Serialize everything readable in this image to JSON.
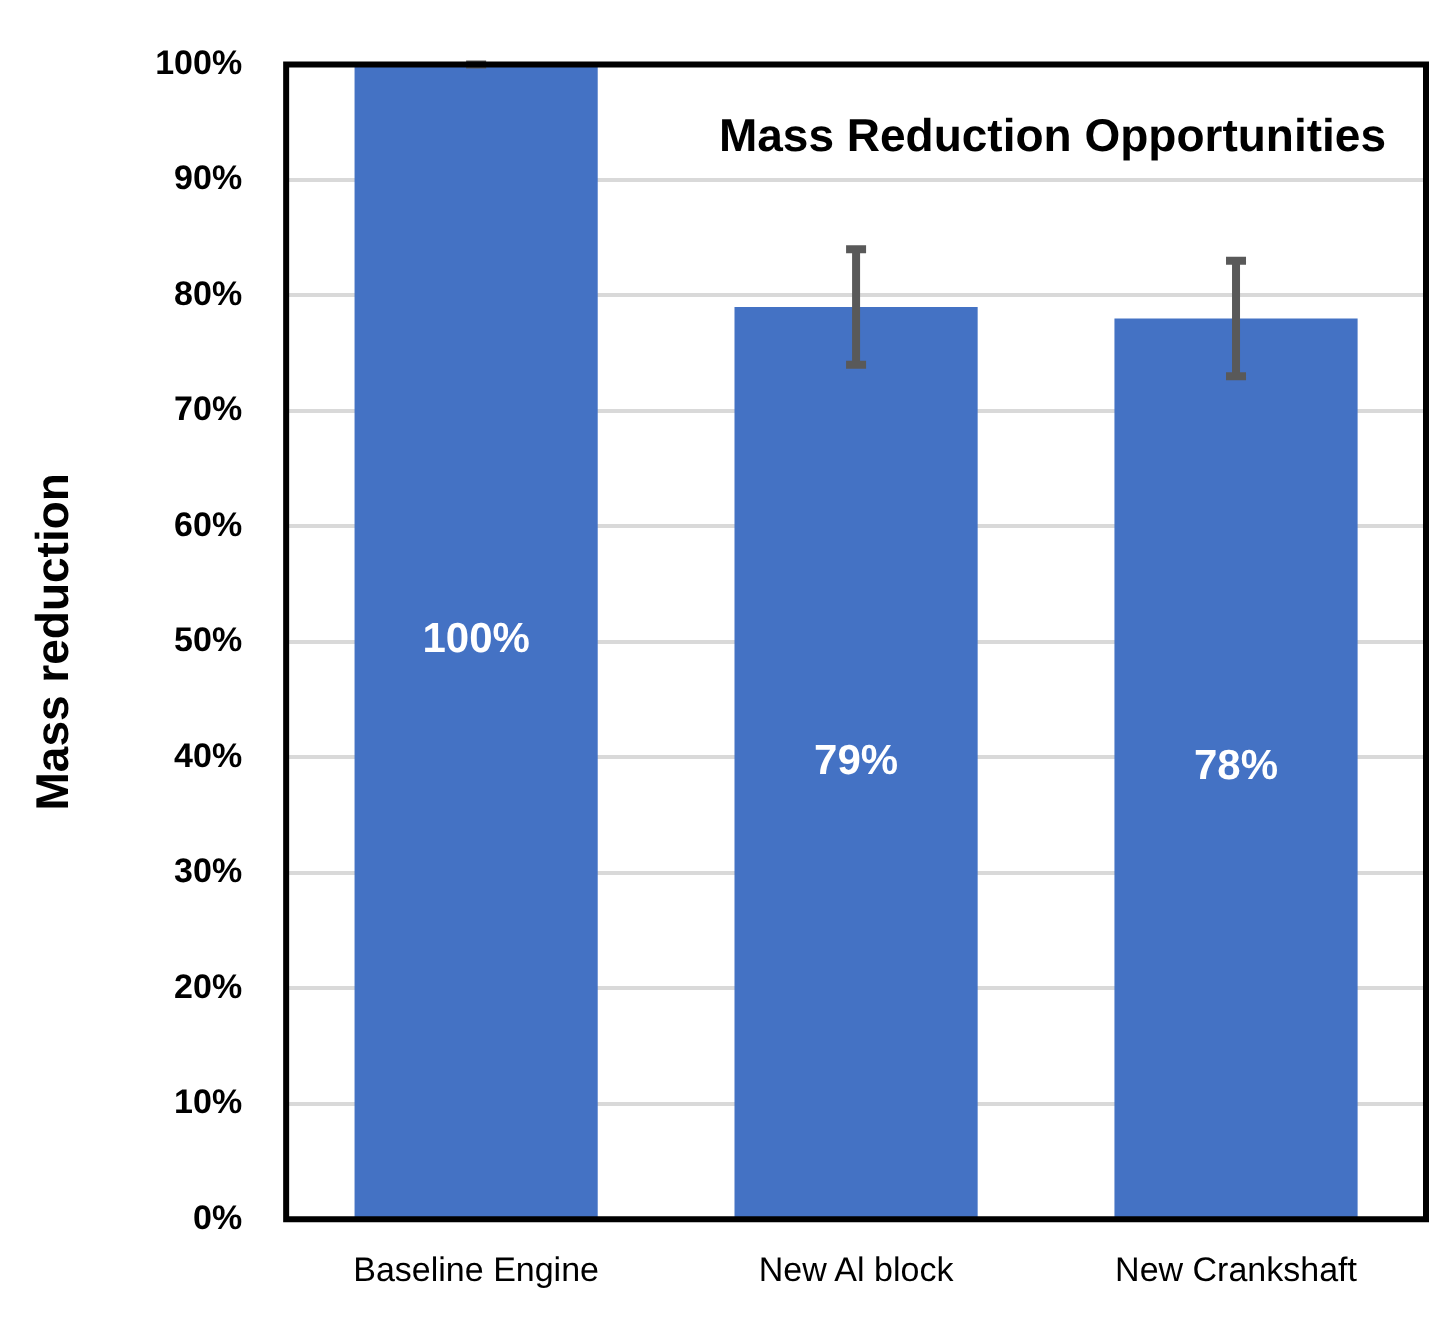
{
  "chart_data": {
    "type": "bar",
    "title": "Mass Reduction Opportunities",
    "ylabel": "Mass reduction",
    "categories": [
      "Baseline Engine",
      "New Al block",
      "New Crankshaft"
    ],
    "values": [
      100,
      79,
      78
    ],
    "errors": [
      0,
      5,
      5
    ],
    "value_labels": [
      "100%",
      "79%",
      "78%"
    ],
    "color": "#4472c4",
    "ylim": [
      0,
      100
    ],
    "yticks": [
      {
        "value": 0,
        "label": "0%"
      },
      {
        "value": 10,
        "label": "10%"
      },
      {
        "value": 20,
        "label": "20%"
      },
      {
        "value": 30,
        "label": "30%"
      },
      {
        "value": 40,
        "label": "40%"
      },
      {
        "value": 50,
        "label": "50%"
      },
      {
        "value": 60,
        "label": "60%"
      },
      {
        "value": 70,
        "label": "70%"
      },
      {
        "value": 80,
        "label": "80%"
      },
      {
        "value": 90,
        "label": "90%"
      },
      {
        "value": 100,
        "label": "100%"
      }
    ],
    "grid": "y"
  }
}
